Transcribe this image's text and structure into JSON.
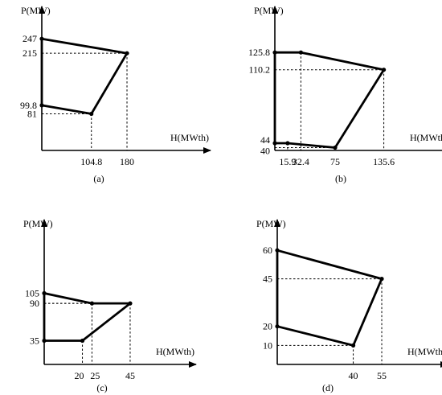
{
  "chart_data": [
    {
      "type": "line",
      "panel_label": "(a)",
      "ylabel": "P(MW)",
      "xlabel": "H(MWth)",
      "x_ticks": [
        "104.8",
        "180"
      ],
      "y_ticks": [
        "247",
        "215",
        "99.8",
        "81"
      ],
      "series": [
        {
          "x": [
            0,
            180,
            104.8,
            0,
            0
          ],
          "y": [
            247,
            215,
            81,
            99.8,
            247
          ]
        }
      ]
    },
    {
      "type": "line",
      "panel_label": "(b)",
      "ylabel": "P(MW)",
      "xlabel": "H(MWth)",
      "x_ticks": [
        "15.9",
        "32.4",
        "75",
        "135.6"
      ],
      "y_ticks": [
        "125.8",
        "110.2",
        "44",
        "40"
      ],
      "series": [
        {
          "x": [
            0,
            32.4,
            135.6,
            75,
            15.9,
            0,
            0
          ],
          "y": [
            125.8,
            125.8,
            110.2,
            40,
            44,
            44,
            125.8
          ]
        }
      ]
    },
    {
      "type": "line",
      "panel_label": "(c)",
      "ylabel": "P(MW)",
      "xlabel": "H(MWth)",
      "x_ticks": [
        "20",
        "25",
        "45"
      ],
      "y_ticks": [
        "105",
        "90",
        "35"
      ],
      "series": [
        {
          "x": [
            0,
            25,
            45,
            20,
            0,
            0
          ],
          "y": [
            105,
            90,
            90,
            35,
            35,
            105
          ]
        }
      ]
    },
    {
      "type": "line",
      "panel_label": "(d)",
      "ylabel": "P(MW)",
      "xlabel": "H(MWth)",
      "x_ticks": [
        "40",
        "55"
      ],
      "y_ticks": [
        "60",
        "45",
        "20",
        "10"
      ],
      "series": [
        {
          "x": [
            0,
            55,
            40,
            0,
            0
          ],
          "y": [
            60,
            45,
            10,
            20,
            60
          ]
        }
      ]
    }
  ]
}
